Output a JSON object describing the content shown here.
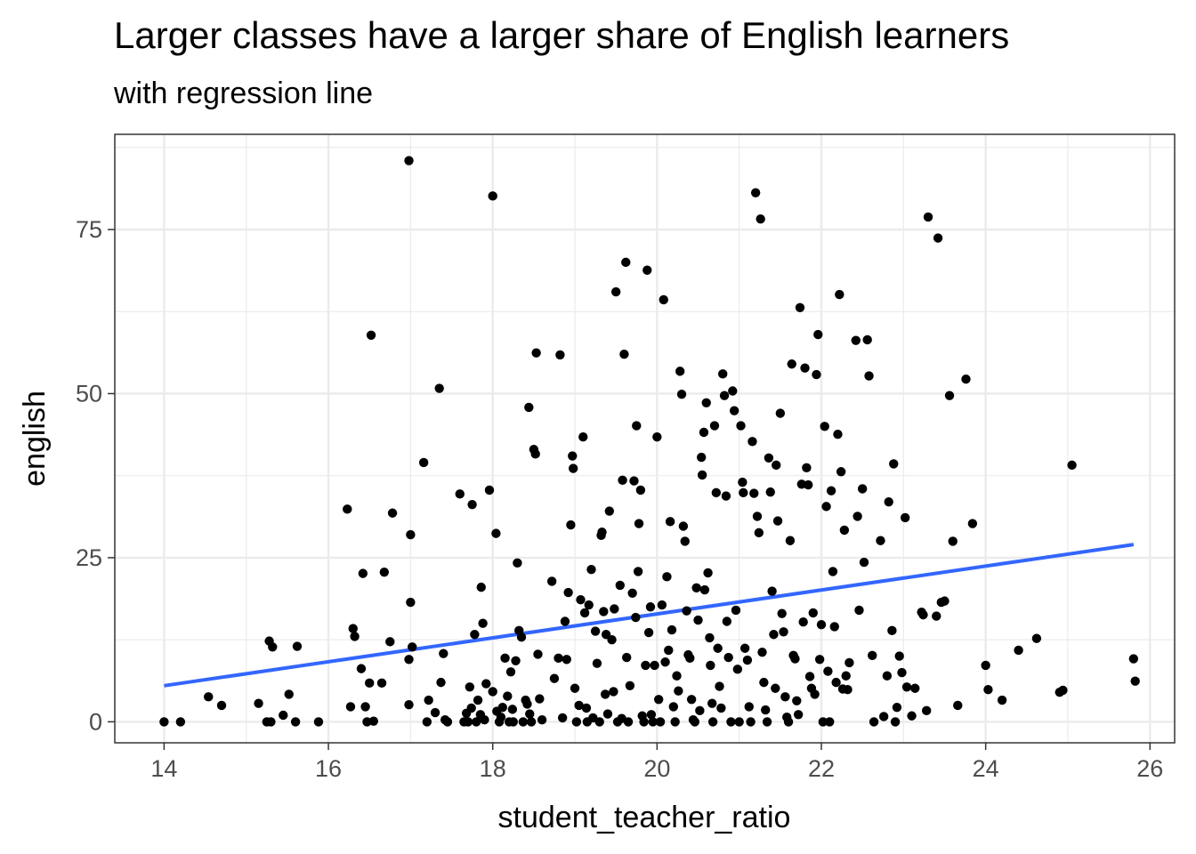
{
  "chart_data": {
    "type": "scatter",
    "title": "Larger classes have a larger share of English learners",
    "subtitle": "with regression line",
    "xlabel": "student_teacher_ratio",
    "ylabel": "english",
    "xlim": [
      13.4,
      26.3
    ],
    "ylim": [
      -3.2,
      89.5
    ],
    "x_ticks": [
      14,
      16,
      18,
      20,
      22,
      24,
      26
    ],
    "y_ticks": [
      0,
      25,
      50,
      75
    ],
    "x_tick_labels": [
      "14",
      "16",
      "18",
      "20",
      "22",
      "24",
      "26"
    ],
    "y_tick_labels": [
      "0",
      "25",
      "50",
      "75"
    ],
    "grid": true,
    "colors": {
      "points": "#000000",
      "regression_line": "#3366FF",
      "grid": "#EBEBEB",
      "panel_border": "#333333"
    },
    "regression_line": {
      "x": [
        14.0,
        25.8
      ],
      "y": [
        5.5,
        27.0
      ]
    },
    "points": [
      [
        14.0,
        0.0
      ],
      [
        14.2,
        0.0
      ],
      [
        14.54,
        3.8
      ],
      [
        14.7,
        2.5
      ],
      [
        15.15,
        2.8
      ],
      [
        15.25,
        0.0
      ],
      [
        15.3,
        0.0
      ],
      [
        15.28,
        12.3
      ],
      [
        15.32,
        11.4
      ],
      [
        15.45,
        1.0
      ],
      [
        15.52,
        4.2
      ],
      [
        15.6,
        0.0
      ],
      [
        15.62,
        11.5
      ],
      [
        15.88,
        0.0
      ],
      [
        16.23,
        32.4
      ],
      [
        16.27,
        2.3
      ],
      [
        16.3,
        14.2
      ],
      [
        16.32,
        13.0
      ],
      [
        16.4,
        8.1
      ],
      [
        16.42,
        22.6
      ],
      [
        16.45,
        2.3
      ],
      [
        16.47,
        0.0
      ],
      [
        16.5,
        5.9
      ],
      [
        16.55,
        0.1
      ],
      [
        16.52,
        58.9
      ],
      [
        16.65,
        5.9
      ],
      [
        16.68,
        22.8
      ],
      [
        16.75,
        12.2
      ],
      [
        16.78,
        31.8
      ],
      [
        16.98,
        85.5
      ],
      [
        17.0,
        28.5
      ],
      [
        17.0,
        18.2
      ],
      [
        16.98,
        9.5
      ],
      [
        16.98,
        2.6
      ],
      [
        17.02,
        11.4
      ],
      [
        17.16,
        39.5
      ],
      [
        17.2,
        0.0
      ],
      [
        17.22,
        3.3
      ],
      [
        17.3,
        1.4
      ],
      [
        17.35,
        50.8
      ],
      [
        17.37,
        6.0
      ],
      [
        17.4,
        10.4
      ],
      [
        17.42,
        0.3
      ],
      [
        17.45,
        0.0
      ],
      [
        17.6,
        34.7
      ],
      [
        17.65,
        0.0
      ],
      [
        17.68,
        1.3
      ],
      [
        17.7,
        0.0
      ],
      [
        17.72,
        5.3
      ],
      [
        17.74,
        2.1
      ],
      [
        17.75,
        33.1
      ],
      [
        17.78,
        13.3
      ],
      [
        17.8,
        0.0
      ],
      [
        17.82,
        3.3
      ],
      [
        17.85,
        1.1
      ],
      [
        17.86,
        20.5
      ],
      [
        17.88,
        15.0
      ],
      [
        17.9,
        0.3
      ],
      [
        17.92,
        5.8
      ],
      [
        17.96,
        35.3
      ],
      [
        18.0,
        4.6
      ],
      [
        18.04,
        28.7
      ],
      [
        18.05,
        1.6
      ],
      [
        18.08,
        0.0
      ],
      [
        18.12,
        2.2
      ],
      [
        18.15,
        9.7
      ],
      [
        18.1,
        0.7
      ],
      [
        18.0,
        80.1
      ],
      [
        18.18,
        3.9
      ],
      [
        18.2,
        0.0
      ],
      [
        18.22,
        7.6
      ],
      [
        18.24,
        1.9
      ],
      [
        18.25,
        0.0
      ],
      [
        18.28,
        9.3
      ],
      [
        18.3,
        24.2
      ],
      [
        18.32,
        13.9
      ],
      [
        18.35,
        12.9
      ],
      [
        18.37,
        0.0
      ],
      [
        18.4,
        3.3
      ],
      [
        18.42,
        2.7
      ],
      [
        18.44,
        47.9
      ],
      [
        18.45,
        1.2
      ],
      [
        18.47,
        0.0
      ],
      [
        18.5,
        41.5
      ],
      [
        18.52,
        40.8
      ],
      [
        18.53,
        56.2
      ],
      [
        18.55,
        10.3
      ],
      [
        18.57,
        3.5
      ],
      [
        18.6,
        0.3
      ],
      [
        18.72,
        21.4
      ],
      [
        18.75,
        6.6
      ],
      [
        18.8,
        9.7
      ],
      [
        18.82,
        55.9
      ],
      [
        18.85,
        0.6
      ],
      [
        18.88,
        15.3
      ],
      [
        18.9,
        9.5
      ],
      [
        18.92,
        19.7
      ],
      [
        18.95,
        30.0
      ],
      [
        18.97,
        40.5
      ],
      [
        18.98,
        38.6
      ],
      [
        19.0,
        5.1
      ],
      [
        19.02,
        0.0
      ],
      [
        19.05,
        2.5
      ],
      [
        19.07,
        18.6
      ],
      [
        19.1,
        43.4
      ],
      [
        19.12,
        16.6
      ],
      [
        19.14,
        2.1
      ],
      [
        19.15,
        0.0
      ],
      [
        19.17,
        17.8
      ],
      [
        19.2,
        23.2
      ],
      [
        19.22,
        0.6
      ],
      [
        19.25,
        13.8
      ],
      [
        19.27,
        8.9
      ],
      [
        19.3,
        0.0
      ],
      [
        19.32,
        28.4
      ],
      [
        19.33,
        28.9
      ],
      [
        19.35,
        16.8
      ],
      [
        19.37,
        4.2
      ],
      [
        19.38,
        13.3
      ],
      [
        19.4,
        1.2
      ],
      [
        19.42,
        32.1
      ],
      [
        19.45,
        12.5
      ],
      [
        19.47,
        4.6
      ],
      [
        19.48,
        17.2
      ],
      [
        19.5,
        65.5
      ],
      [
        19.52,
        0.0
      ],
      [
        19.55,
        20.8
      ],
      [
        19.57,
        0.5
      ],
      [
        19.58,
        36.8
      ],
      [
        19.6,
        56.0
      ],
      [
        19.62,
        70.0
      ],
      [
        19.63,
        9.8
      ],
      [
        19.65,
        0.0
      ],
      [
        19.67,
        5.5
      ],
      [
        19.7,
        19.6
      ],
      [
        19.72,
        36.7
      ],
      [
        19.74,
        15.9
      ],
      [
        19.75,
        45.1
      ],
      [
        19.77,
        22.9
      ],
      [
        19.78,
        30.2
      ],
      [
        19.8,
        35.3
      ],
      [
        19.82,
        0.9
      ],
      [
        19.84,
        0.0
      ],
      [
        19.86,
        8.6
      ],
      [
        19.88,
        68.8
      ],
      [
        19.9,
        13.6
      ],
      [
        19.92,
        17.5
      ],
      [
        19.93,
        1.1
      ],
      [
        19.95,
        0.0
      ],
      [
        19.97,
        8.6
      ],
      [
        20.0,
        43.4
      ],
      [
        20.02,
        3.4
      ],
      [
        20.04,
        0.0
      ],
      [
        20.06,
        17.8
      ],
      [
        20.08,
        64.3
      ],
      [
        20.1,
        9.1
      ],
      [
        20.12,
        22.1
      ],
      [
        20.14,
        10.9
      ],
      [
        20.16,
        30.5
      ],
      [
        20.18,
        14.0
      ],
      [
        20.2,
        2.3
      ],
      [
        20.22,
        0.0
      ],
      [
        20.24,
        7.0
      ],
      [
        20.26,
        4.7
      ],
      [
        20.28,
        53.4
      ],
      [
        20.3,
        49.9
      ],
      [
        20.32,
        29.8
      ],
      [
        20.34,
        27.5
      ],
      [
        20.36,
        16.9
      ],
      [
        20.38,
        10.2
      ],
      [
        20.4,
        9.7
      ],
      [
        20.42,
        3.4
      ],
      [
        20.44,
        0.3
      ],
      [
        20.46,
        0.0
      ],
      [
        20.48,
        20.4
      ],
      [
        20.5,
        15.5
      ],
      [
        20.52,
        1.7
      ],
      [
        20.54,
        40.3
      ],
      [
        20.55,
        37.6
      ],
      [
        20.57,
        44.1
      ],
      [
        20.58,
        20.1
      ],
      [
        20.6,
        48.6
      ],
      [
        20.62,
        22.7
      ],
      [
        20.64,
        12.8
      ],
      [
        20.65,
        8.6
      ],
      [
        20.67,
        2.8
      ],
      [
        20.68,
        0.0
      ],
      [
        20.7,
        45.1
      ],
      [
        20.72,
        34.9
      ],
      [
        20.74,
        11.2
      ],
      [
        20.76,
        5.4
      ],
      [
        20.78,
        2.1
      ],
      [
        20.8,
        53.0
      ],
      [
        20.82,
        49.7
      ],
      [
        20.84,
        34.4
      ],
      [
        20.85,
        15.3
      ],
      [
        20.87,
        9.8
      ],
      [
        20.9,
        0.0
      ],
      [
        20.92,
        50.4
      ],
      [
        20.94,
        47.4
      ],
      [
        20.96,
        17.0
      ],
      [
        20.98,
        8.0
      ],
      [
        21.0,
        0.0
      ],
      [
        21.02,
        45.1
      ],
      [
        21.04,
        36.5
      ],
      [
        21.05,
        34.9
      ],
      [
        21.07,
        11.2
      ],
      [
        21.1,
        9.4
      ],
      [
        21.12,
        2.3
      ],
      [
        21.14,
        0.0
      ],
      [
        21.16,
        42.7
      ],
      [
        21.18,
        34.8
      ],
      [
        21.2,
        80.6
      ],
      [
        21.22,
        31.3
      ],
      [
        21.24,
        28.8
      ],
      [
        21.26,
        76.6
      ],
      [
        21.28,
        10.6
      ],
      [
        21.3,
        6.0
      ],
      [
        21.32,
        1.8
      ],
      [
        21.34,
        0.0
      ],
      [
        21.36,
        40.2
      ],
      [
        21.38,
        35.0
      ],
      [
        21.4,
        19.9
      ],
      [
        21.42,
        13.3
      ],
      [
        21.44,
        5.1
      ],
      [
        21.45,
        39.1
      ],
      [
        21.47,
        30.6
      ],
      [
        21.5,
        47.0
      ],
      [
        21.52,
        16.5
      ],
      [
        21.54,
        13.7
      ],
      [
        21.56,
        3.8
      ],
      [
        21.58,
        0.7
      ],
      [
        21.6,
        0.0
      ],
      [
        21.62,
        27.6
      ],
      [
        21.64,
        54.5
      ],
      [
        21.66,
        10.1
      ],
      [
        21.68,
        9.6
      ],
      [
        21.7,
        3.2
      ],
      [
        21.72,
        1.1
      ],
      [
        21.74,
        63.1
      ],
      [
        21.76,
        36.2
      ],
      [
        21.78,
        15.2
      ],
      [
        21.8,
        53.9
      ],
      [
        21.82,
        38.7
      ],
      [
        21.84,
        36.1
      ],
      [
        21.86,
        6.9
      ],
      [
        21.88,
        5.1
      ],
      [
        21.9,
        16.6
      ],
      [
        21.92,
        4.2
      ],
      [
        21.94,
        52.9
      ],
      [
        21.96,
        59.0
      ],
      [
        21.98,
        9.5
      ],
      [
        22.0,
        14.8
      ],
      [
        22.02,
        0.0
      ],
      [
        22.04,
        45.0
      ],
      [
        22.06,
        32.8
      ],
      [
        22.08,
        7.7
      ],
      [
        22.1,
        0.0
      ],
      [
        22.12,
        35.2
      ],
      [
        22.14,
        22.9
      ],
      [
        22.16,
        14.5
      ],
      [
        22.18,
        6.0
      ],
      [
        22.2,
        43.8
      ],
      [
        22.22,
        65.1
      ],
      [
        22.24,
        38.1
      ],
      [
        22.26,
        5.0
      ],
      [
        22.28,
        29.2
      ],
      [
        22.3,
        7.0
      ],
      [
        22.32,
        4.9
      ],
      [
        22.34,
        9.0
      ],
      [
        22.42,
        58.1
      ],
      [
        22.44,
        31.3
      ],
      [
        22.46,
        17.0
      ],
      [
        22.5,
        35.5
      ],
      [
        22.52,
        24.3
      ],
      [
        22.56,
        58.2
      ],
      [
        22.58,
        52.7
      ],
      [
        22.62,
        10.1
      ],
      [
        22.64,
        0.0
      ],
      [
        22.72,
        27.6
      ],
      [
        22.76,
        0.8
      ],
      [
        22.8,
        7.0
      ],
      [
        22.82,
        33.5
      ],
      [
        22.86,
        13.9
      ],
      [
        22.88,
        39.3
      ],
      [
        22.9,
        0.0
      ],
      [
        22.92,
        2.2
      ],
      [
        22.95,
        10.0
      ],
      [
        22.98,
        7.5
      ],
      [
        23.02,
        31.1
      ],
      [
        23.04,
        5.3
      ],
      [
        23.1,
        0.9
      ],
      [
        23.14,
        5.1
      ],
      [
        23.22,
        16.7
      ],
      [
        23.24,
        16.3
      ],
      [
        23.28,
        1.7
      ],
      [
        23.3,
        76.9
      ],
      [
        23.42,
        73.7
      ],
      [
        23.4,
        16.1
      ],
      [
        23.46,
        18.2
      ],
      [
        23.5,
        18.4
      ],
      [
        23.56,
        49.7
      ],
      [
        23.6,
        27.5
      ],
      [
        23.66,
        2.5
      ],
      [
        23.76,
        52.2
      ],
      [
        23.84,
        30.2
      ],
      [
        24.03,
        4.9
      ],
      [
        24.2,
        3.3
      ],
      [
        24.0,
        8.6
      ],
      [
        24.4,
        10.9
      ],
      [
        24.62,
        12.7
      ],
      [
        24.9,
        4.5
      ],
      [
        24.94,
        4.8
      ],
      [
        25.05,
        39.1
      ],
      [
        25.8,
        9.6
      ],
      [
        25.82,
        6.2
      ]
    ]
  }
}
